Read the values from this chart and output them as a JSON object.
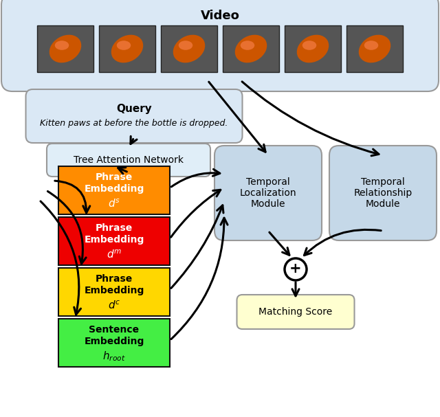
{
  "title": "Video",
  "query_text": "Query",
  "query_italic": "Kitten paws at before the bottle is dropped.",
  "tree_network": "Tree Attention Network",
  "phrase_orange": {
    "label": "Phrase\nEmbedding",
    "subscript": "$d^s$",
    "color": "#FF8C00"
  },
  "phrase_red": {
    "label": "Phrase\nEmbedding",
    "subscript": "$d^m$",
    "color": "#EE0000"
  },
  "phrase_yellow": {
    "label": "Phrase\nEmbedding",
    "subscript": "$d^c$",
    "color": "#FFD700"
  },
  "sentence": {
    "label": "Sentence\nEmbedding",
    "subscript": "$h_{root}$",
    "color": "#44EE44"
  },
  "temporal_loc": "Temporal\nLocalization\nModule",
  "temporal_rel": "Temporal\nRelationship\nModule",
  "plus_symbol": "+",
  "matching": "Matching Score",
  "video_bg": "#DAE8F5",
  "module_bg": "#C5D8E8",
  "query_bg": "#DAE8F5",
  "tree_bg": "#E0EEF8",
  "matching_bg": "#FFFFD0",
  "bg_color": "#FFFFFF",
  "fig_w": 6.4,
  "fig_h": 6.07,
  "dpi": 100
}
